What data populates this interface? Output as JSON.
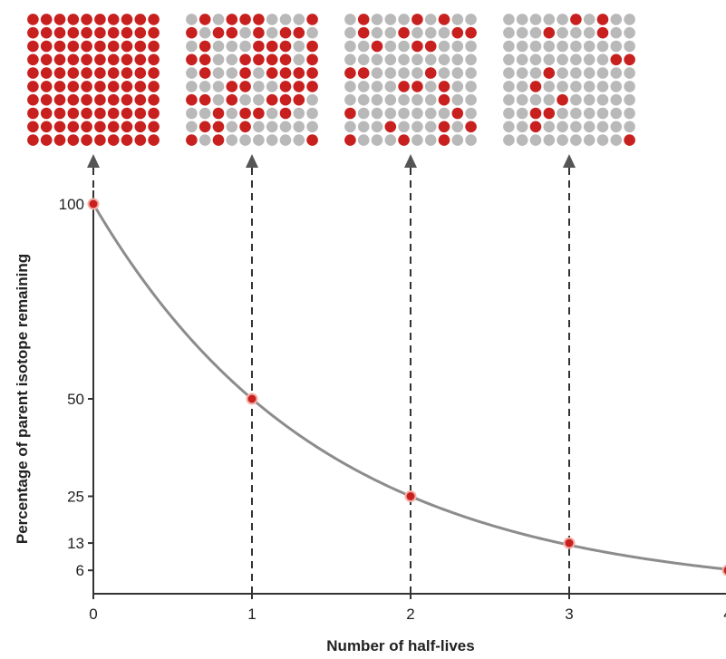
{
  "chart_data": {
    "type": "line",
    "title": "",
    "xlabel": "Number of half-lives",
    "ylabel": "Percentage of parent isotope remaining",
    "x_ticks": [
      "0",
      "1",
      "2",
      "3",
      "4"
    ],
    "y_ticks": [
      "6",
      "13",
      "25",
      "50",
      "100"
    ],
    "xlim": [
      0,
      4
    ],
    "ylim": [
      0,
      100
    ],
    "grid": false,
    "legend": "none",
    "curve": "exponential decay, halving every half-life",
    "series": [
      {
        "x": [
          0,
          1,
          2,
          3,
          4
        ],
        "y": [
          100,
          50,
          25,
          13,
          6
        ]
      }
    ],
    "grids": [
      {
        "half_lives": 0,
        "rows": 10,
        "cols": 10,
        "parent_remaining": 100
      },
      {
        "half_lives": 1,
        "rows": 10,
        "cols": 10,
        "parent_remaining": 50
      },
      {
        "half_lives": 2,
        "rows": 10,
        "cols": 10,
        "parent_remaining": 25
      },
      {
        "half_lives": 3,
        "rows": 10,
        "cols": 10,
        "parent_remaining": 13
      }
    ],
    "colors": {
      "parent": "#c8201e",
      "daughter": "#b9b9b9",
      "curve": "#8c8c8c",
      "marker": "#c8201e",
      "axis": "#333333",
      "guide": "#333333"
    }
  }
}
